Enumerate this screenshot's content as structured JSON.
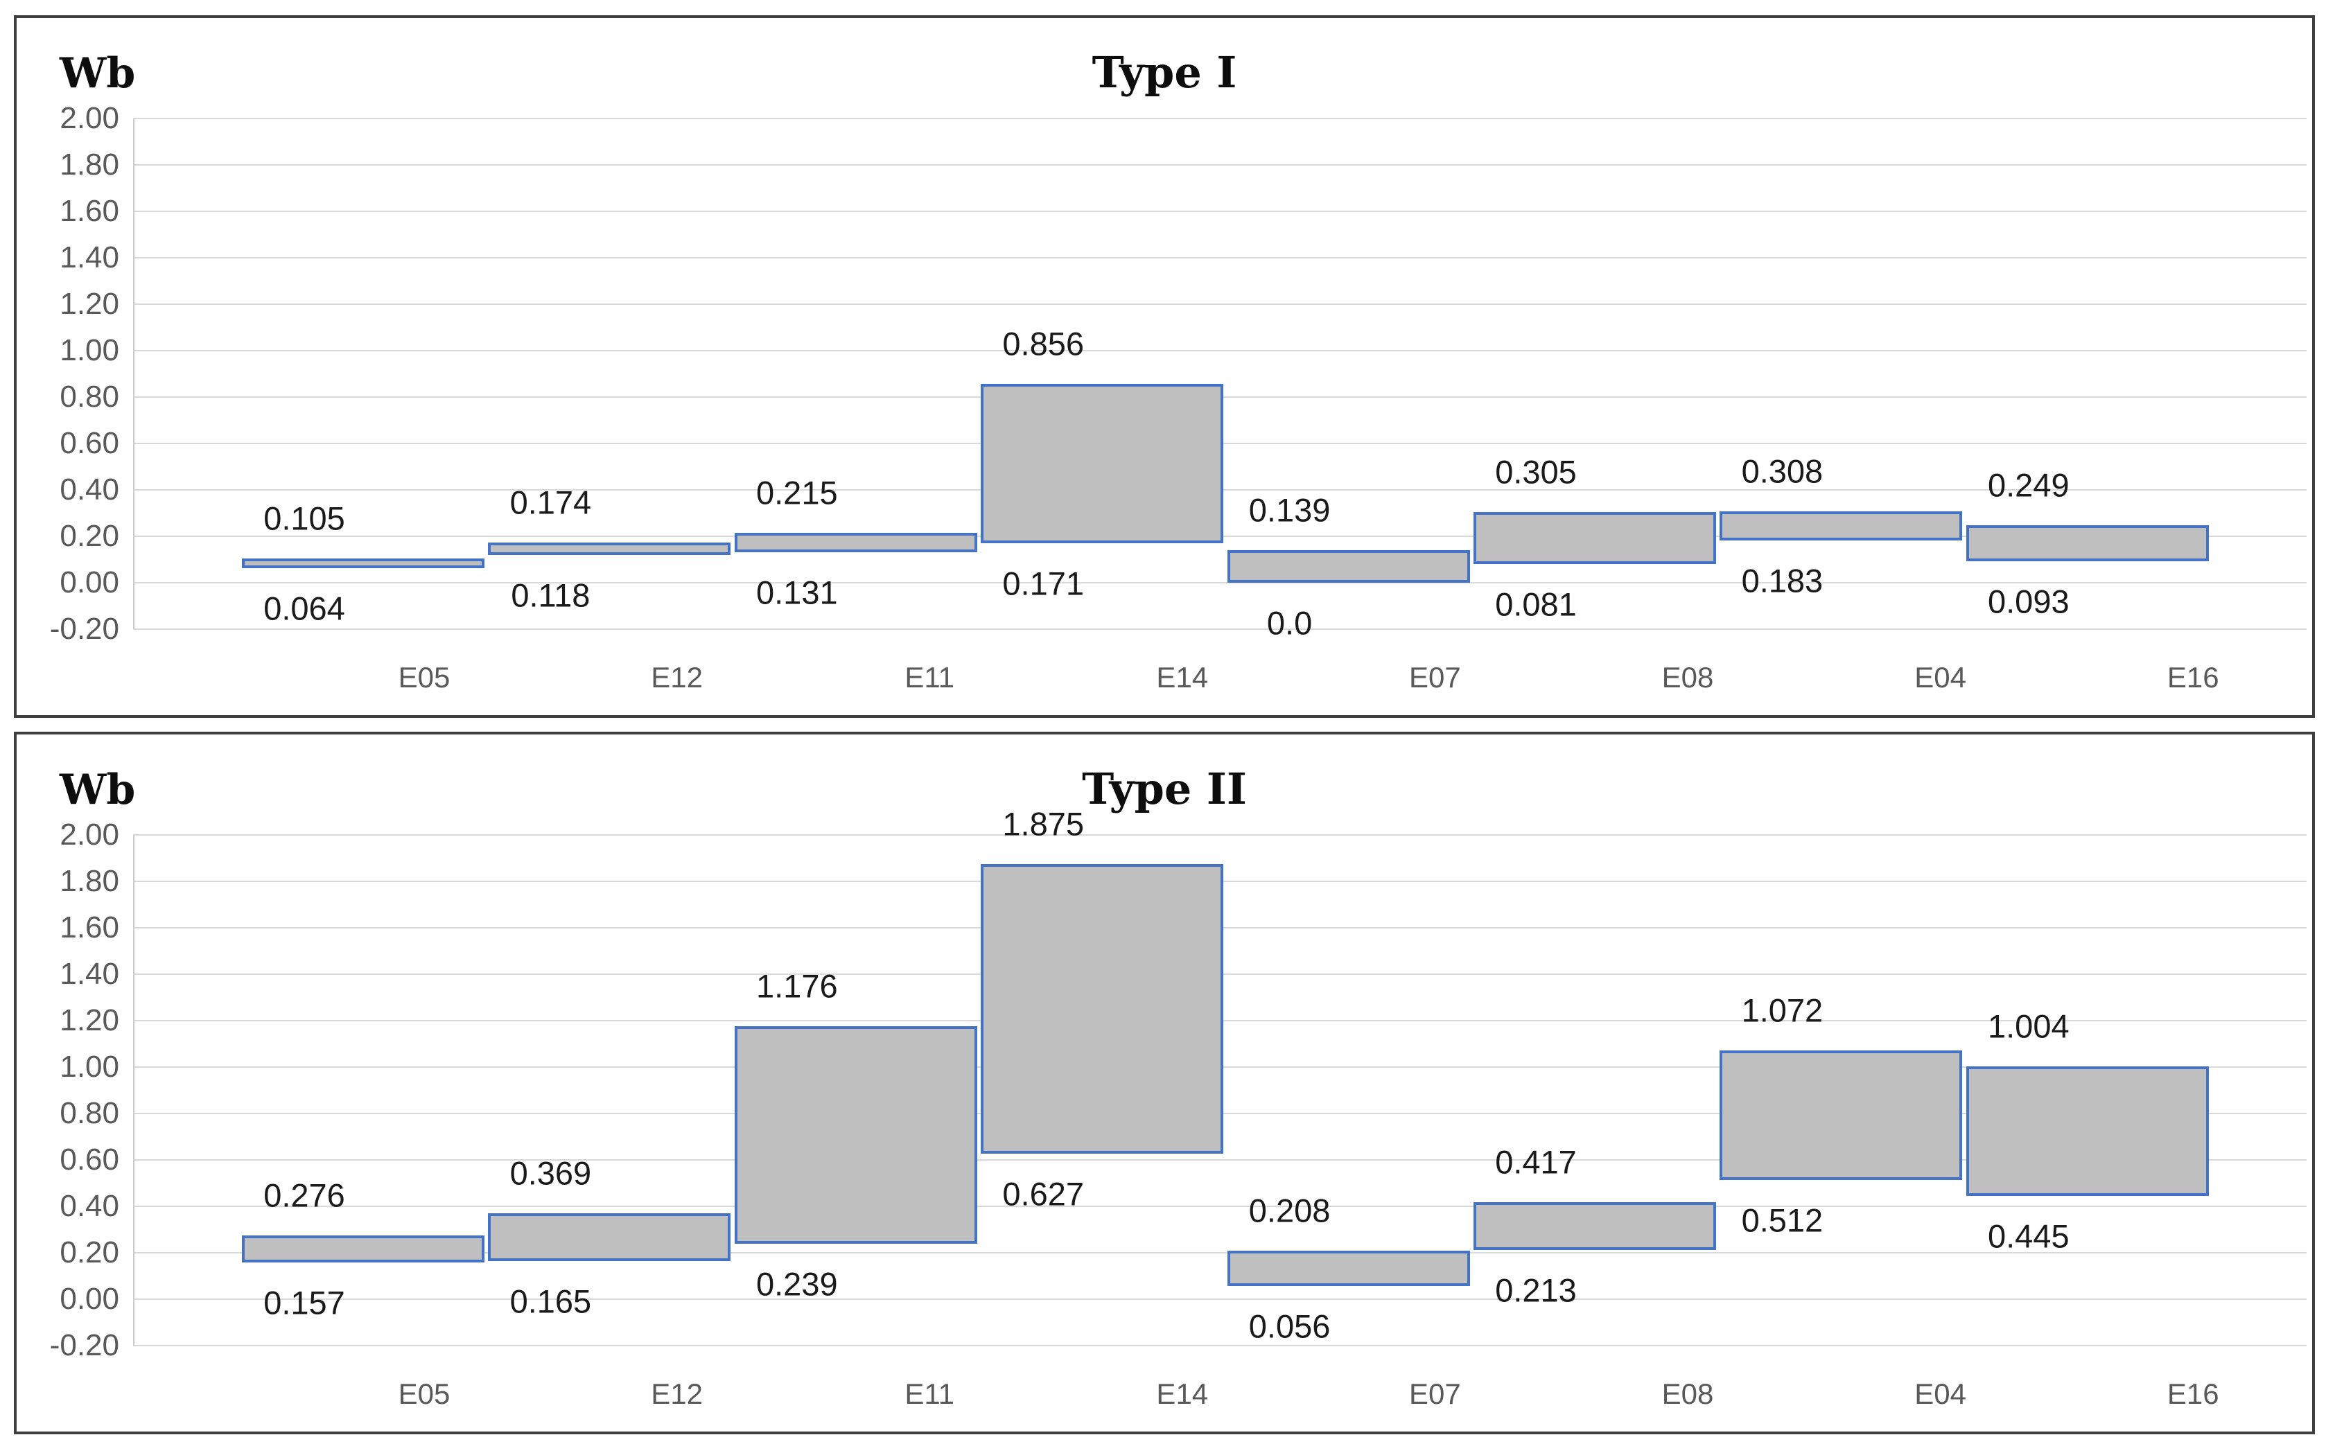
{
  "page": {
    "background": "#ffffff"
  },
  "chart_data": [
    {
      "type": "bar",
      "variant": "floating-range-bar",
      "title": "Type I",
      "ylabel": "Wb",
      "xlabel": "",
      "categories": [
        "E05",
        "E12",
        "E11",
        "E14",
        "E07",
        "E08",
        "E04",
        "E16"
      ],
      "series": [
        {
          "name": "min",
          "values": [
            0.064,
            0.118,
            0.131,
            0.171,
            0.0,
            0.081,
            0.183,
            0.093
          ]
        },
        {
          "name": "max",
          "values": [
            0.105,
            0.174,
            0.215,
            0.856,
            0.139,
            0.305,
            0.308,
            0.249
          ]
        }
      ],
      "labels_max": [
        "0.105",
        "0.174",
        "0.215",
        "0.856",
        "0.139",
        "0.305",
        "0.308",
        "0.249"
      ],
      "labels_min": [
        "0.064",
        "0.118",
        "0.131",
        "0.171",
        "0.0",
        "0.081",
        "0.183",
        "0.093"
      ],
      "ylim": [
        -0.2,
        2.0
      ],
      "y_ticks": [
        "2.00",
        "1.80",
        "1.60",
        "1.40",
        "1.20",
        "1.00",
        "0.80",
        "0.60",
        "0.40",
        "0.20",
        "0.00",
        "-0.20"
      ],
      "grid": true,
      "legend": "none",
      "colors": {
        "bar_fill": "#bfbfbf",
        "bar_border": "#4472c4",
        "grid": "#d9d9d9",
        "tick_text": "#595959",
        "label_text": "#1a1a1a",
        "frame": "#3f3f3f"
      }
    },
    {
      "type": "bar",
      "variant": "floating-range-bar",
      "title": "Type II",
      "ylabel": "Wb",
      "xlabel": "",
      "categories": [
        "E05",
        "E12",
        "E11",
        "E14",
        "E07",
        "E08",
        "E04",
        "E16"
      ],
      "series": [
        {
          "name": "min",
          "values": [
            0.157,
            0.165,
            0.239,
            0.627,
            0.056,
            0.213,
            0.512,
            0.445
          ]
        },
        {
          "name": "max",
          "values": [
            0.276,
            0.369,
            1.176,
            1.875,
            0.208,
            0.417,
            1.072,
            1.004
          ]
        }
      ],
      "labels_max": [
        "0.276",
        "0.369",
        "1.176",
        "1.875",
        "0.208",
        "0.417",
        "1.072",
        "1.004"
      ],
      "labels_min": [
        "0.157",
        "0.165",
        "0.239",
        "0.627",
        "0.056",
        "0.213",
        "0.512",
        "0.445"
      ],
      "ylim": [
        -0.2,
        2.0
      ],
      "y_ticks": [
        "2.00",
        "1.80",
        "1.60",
        "1.40",
        "1.20",
        "1.00",
        "0.80",
        "0.60",
        "0.40",
        "0.20",
        "0.00",
        "-0.20"
      ],
      "grid": true,
      "legend": "none",
      "colors": {
        "bar_fill": "#bfbfbf",
        "bar_border": "#4472c4",
        "grid": "#d9d9d9",
        "tick_text": "#595959",
        "label_text": "#1a1a1a",
        "frame": "#3f3f3f"
      }
    }
  ]
}
